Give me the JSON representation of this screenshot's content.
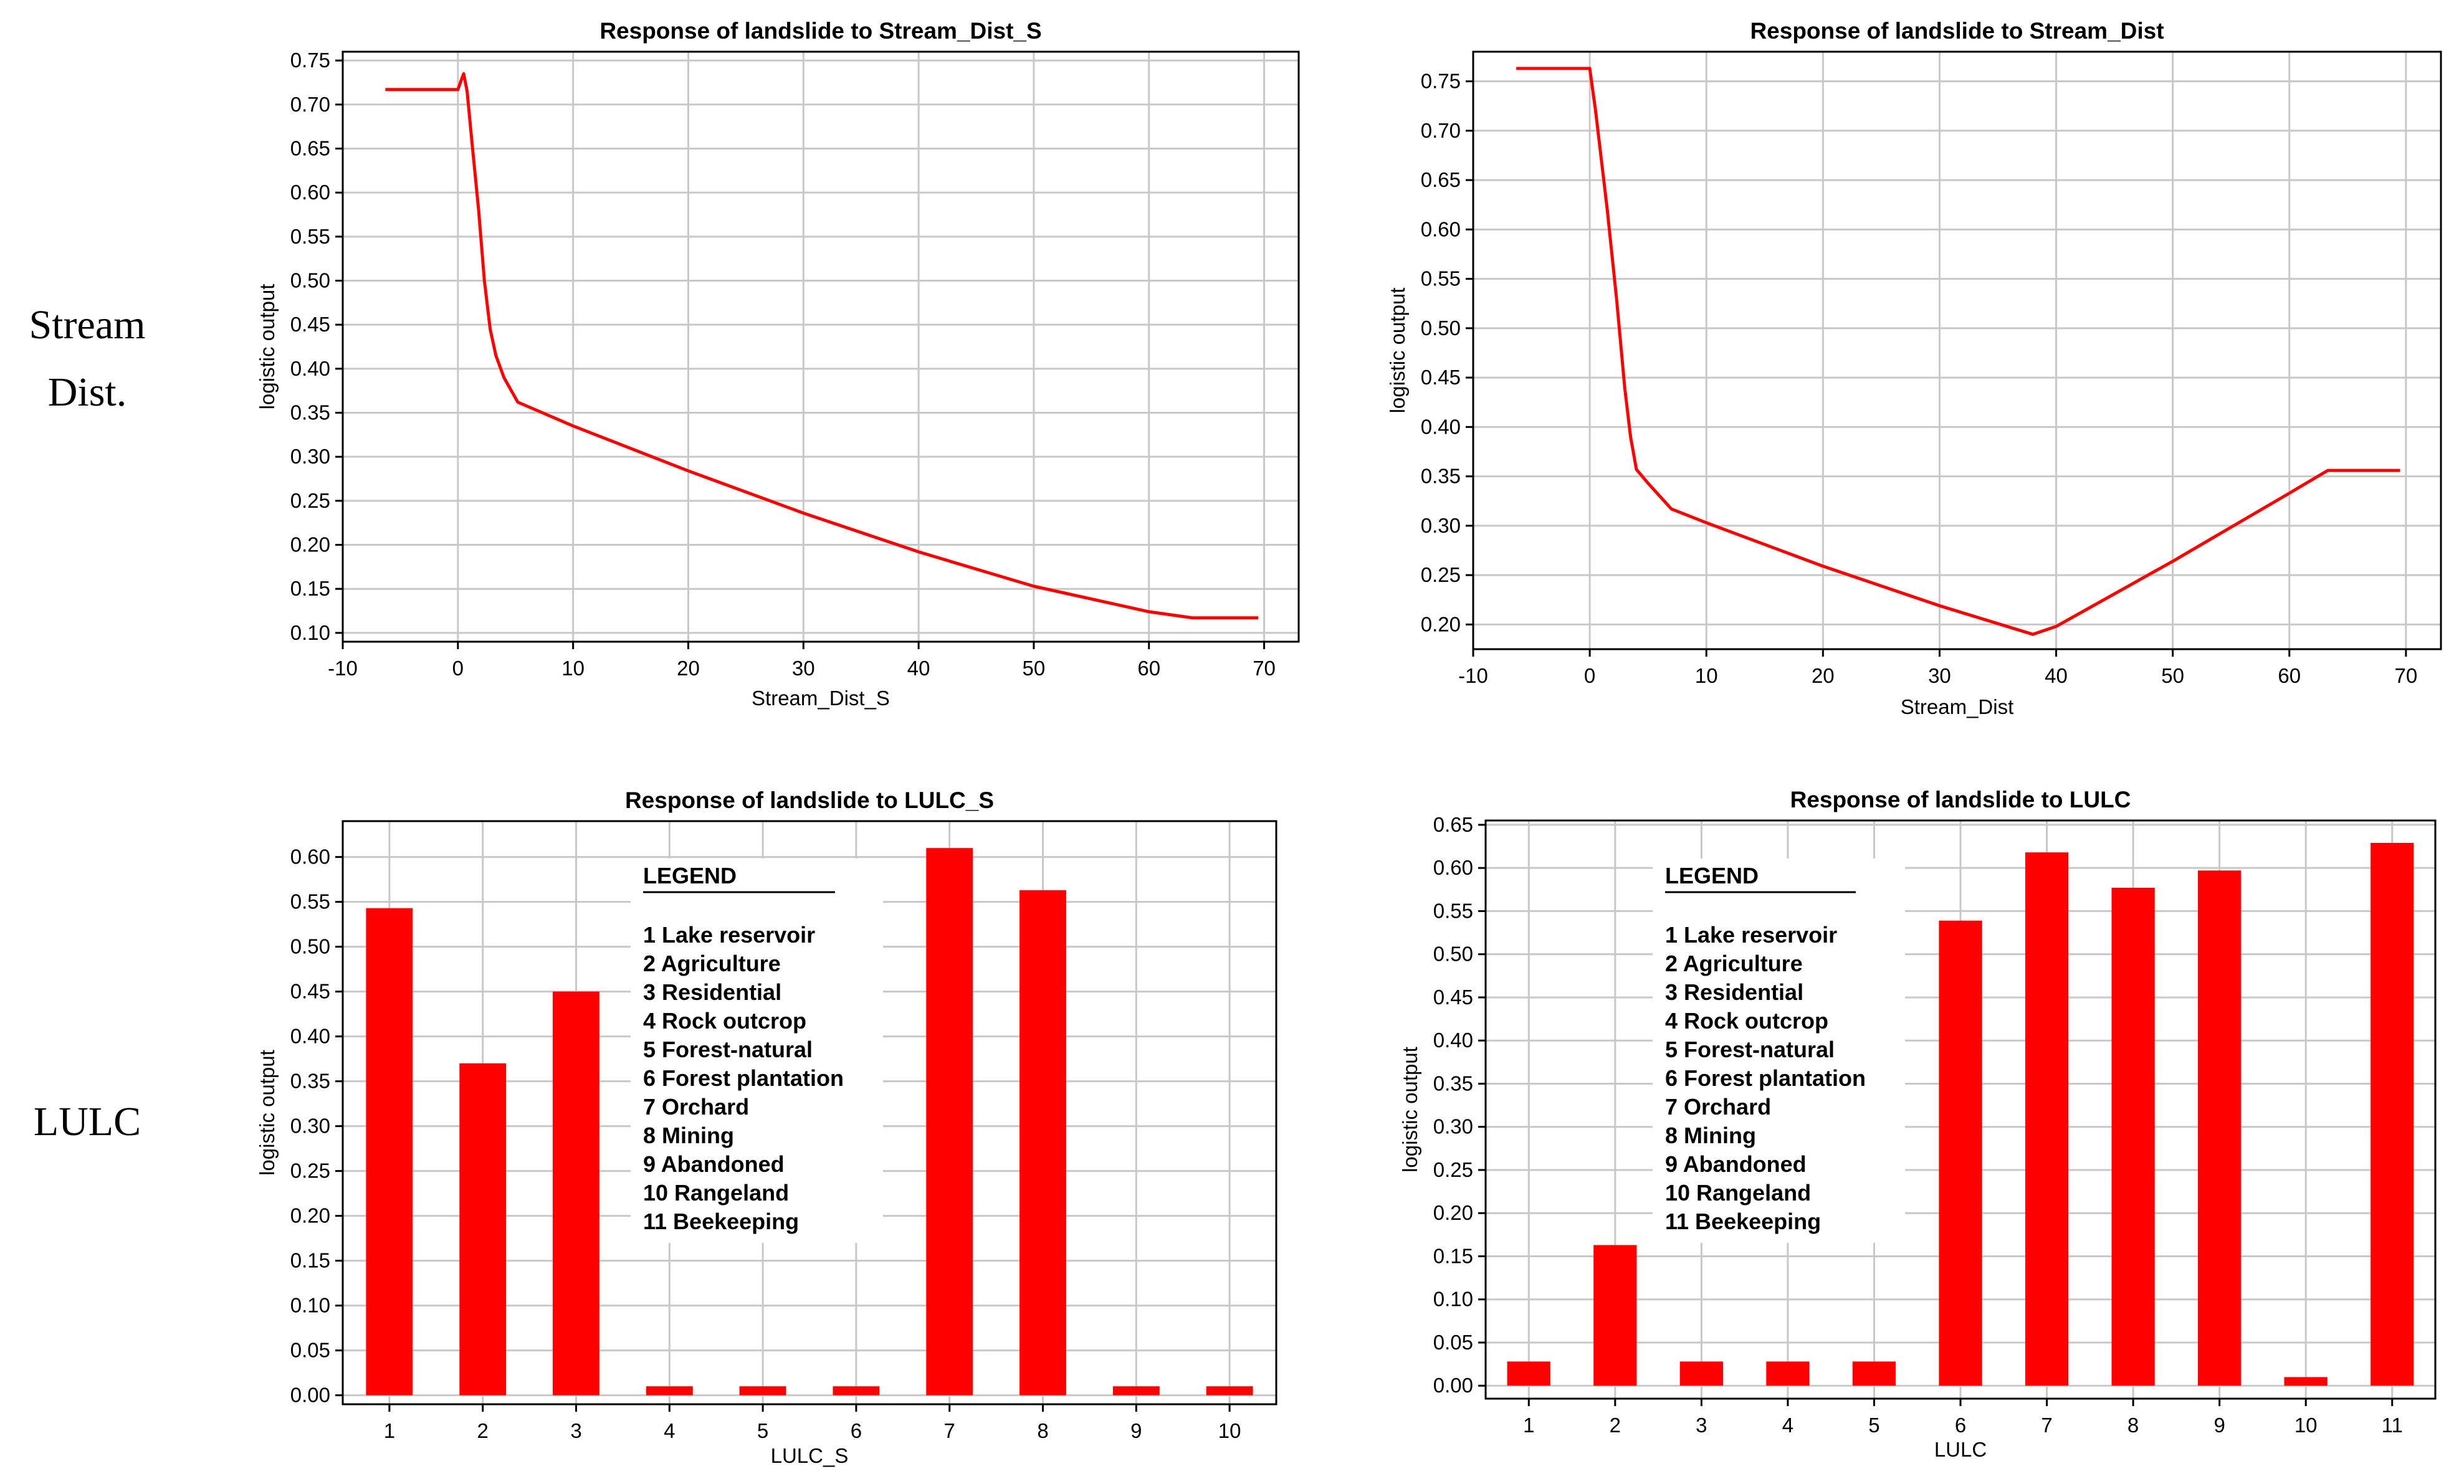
{
  "row_labels": {
    "stream": [
      "Stream",
      "Dist."
    ],
    "lulc": "LULC"
  },
  "colors": {
    "series": "#ff0000",
    "grid": "#c8c8c8",
    "axis": "#000000"
  },
  "legend": {
    "title": "LEGEND",
    "items": [
      "1 Lake reservoir",
      "2 Agriculture",
      "3 Residential",
      "4 Rock outcrop",
      "5 Forest-natural",
      "6 Forest plantation",
      "7 Orchard",
      "8 Mining",
      "9 Abandoned",
      "10 Rangeland",
      "11 Beekeeping"
    ]
  },
  "chart_data": [
    {
      "id": "stream_dist_s",
      "type": "line",
      "title": "Response of landslide to Stream_Dist_S",
      "xlabel": "Stream_Dist_S",
      "ylabel": "logistic output",
      "xlim": [
        -10,
        73
      ],
      "ylim": [
        0.09,
        0.76
      ],
      "xticks": [
        -10,
        0,
        10,
        20,
        30,
        40,
        50,
        60,
        70
      ],
      "yticks": [
        0.1,
        0.15,
        0.2,
        0.25,
        0.3,
        0.35,
        0.4,
        0.45,
        0.5,
        0.55,
        0.6,
        0.65,
        0.7,
        0.75
      ],
      "x": [
        -6.3,
        0,
        0.3,
        0.5,
        0.8,
        1.2,
        1.8,
        2.3,
        2.8,
        3.3,
        4.0,
        5.2,
        10,
        20,
        30,
        40,
        50,
        60,
        63.8,
        69.5
      ],
      "y": [
        0.717,
        0.717,
        0.728,
        0.735,
        0.715,
        0.66,
        0.58,
        0.5,
        0.445,
        0.415,
        0.39,
        0.362,
        0.335,
        0.284,
        0.236,
        0.192,
        0.153,
        0.124,
        0.117,
        0.117
      ]
    },
    {
      "id": "stream_dist",
      "type": "line",
      "title": "Response of landslide to Stream_Dist",
      "xlabel": "Stream_Dist",
      "ylabel": "logistic output",
      "xlim": [
        -10,
        73
      ],
      "ylim": [
        0.175,
        0.78
      ],
      "xticks": [
        -10,
        0,
        10,
        20,
        30,
        40,
        50,
        60,
        70
      ],
      "yticks": [
        0.2,
        0.25,
        0.3,
        0.35,
        0.4,
        0.45,
        0.5,
        0.55,
        0.6,
        0.65,
        0.7,
        0.75
      ],
      "x": [
        -6.3,
        0,
        0.5,
        1.5,
        2.3,
        3.0,
        3.5,
        4.0,
        5.0,
        7.0,
        10,
        20,
        30,
        38,
        40,
        50,
        60,
        63.3,
        69.5
      ],
      "y": [
        0.763,
        0.763,
        0.72,
        0.62,
        0.53,
        0.44,
        0.39,
        0.357,
        0.343,
        0.317,
        0.303,
        0.259,
        0.219,
        0.19,
        0.198,
        0.264,
        0.333,
        0.356,
        0.356
      ]
    },
    {
      "id": "lulc_s",
      "type": "bar",
      "title": "Response of landslide to LULC_S",
      "xlabel": "LULC_S",
      "ylabel": "logistic output",
      "ylim": [
        -0.01,
        0.64
      ],
      "yticks": [
        0.0,
        0.05,
        0.1,
        0.15,
        0.2,
        0.25,
        0.3,
        0.35,
        0.4,
        0.45,
        0.5,
        0.55,
        0.6
      ],
      "categories": [
        "1",
        "2",
        "3",
        "4",
        "5",
        "6",
        "7",
        "8",
        "9",
        "10"
      ],
      "values": [
        0.543,
        0.37,
        0.45,
        0.01,
        0.01,
        0.01,
        0.61,
        0.563,
        0.01,
        0.01
      ]
    },
    {
      "id": "lulc",
      "type": "bar",
      "title": "Response of landslide to LULC",
      "xlabel": "LULC",
      "ylabel": "logistic output",
      "ylim": [
        -0.015,
        0.655
      ],
      "yticks": [
        0.0,
        0.05,
        0.1,
        0.15,
        0.2,
        0.25,
        0.3,
        0.35,
        0.4,
        0.45,
        0.5,
        0.55,
        0.6,
        0.65
      ],
      "categories": [
        "1",
        "2",
        "3",
        "4",
        "5",
        "6",
        "7",
        "8",
        "9",
        "10",
        "11"
      ],
      "values": [
        0.028,
        0.163,
        0.028,
        0.028,
        0.028,
        0.539,
        0.618,
        0.577,
        0.597,
        0.01,
        0.629
      ]
    }
  ]
}
